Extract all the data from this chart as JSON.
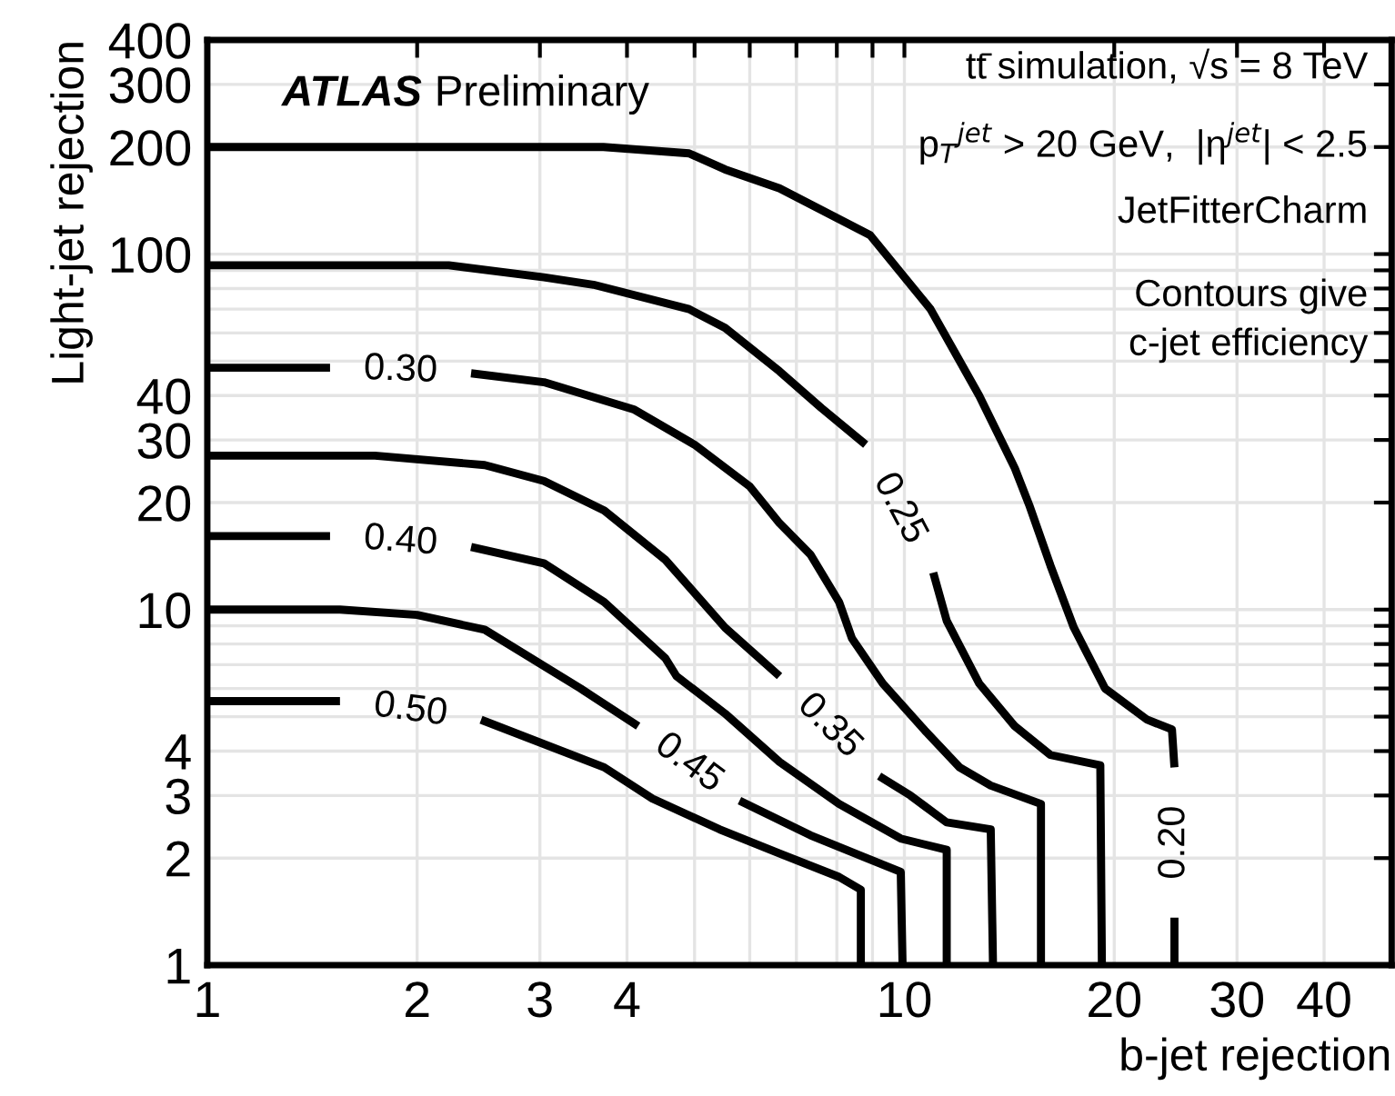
{
  "chart_data": {
    "type": "line",
    "xlabel": "b-jet rejection",
    "ylabel": "Light-jet rejection",
    "annotations": [
      "ATLAS",
      "Preliminary",
      "tt̄ simulation, √s = 8 TeV",
      "p$_{T}$$^{jet}$ > 20 GeV,  |η$^{jet}$| < 2.5",
      "JetFitterCharm",
      "Contours give",
      "c-jet efficiency"
    ],
    "log": "xy",
    "grid": true,
    "line_style": "solid",
    "marker": "none",
    "xlim": [
      1,
      50
    ],
    "ylim": [
      1,
      400
    ],
    "xticks": [
      1,
      2,
      3,
      4,
      {
        "value": 5,
        "label": null
      },
      {
        "value": 6,
        "label": null
      },
      {
        "value": 7,
        "label": null
      },
      {
        "value": 8,
        "label": null
      },
      {
        "value": 9,
        "label": null
      },
      10,
      20,
      30,
      40
    ],
    "yticks": [
      1,
      2,
      3,
      4,
      {
        "value": 5,
        "label": null
      },
      {
        "value": 6,
        "label": null
      },
      {
        "value": 7,
        "label": null
      },
      {
        "value": 8,
        "label": null
      },
      {
        "value": 9,
        "label": null
      },
      10,
      20,
      30,
      40,
      {
        "value": 50,
        "label": null
      },
      {
        "value": 60,
        "label": null
      },
      {
        "value": 70,
        "label": null
      },
      {
        "value": 80,
        "label": null
      },
      {
        "value": 90,
        "label": null
      },
      100,
      200,
      300,
      400
    ],
    "series": [
      {
        "name": "0.20",
        "color": "#000000",
        "x": [
          1,
          3.7,
          4.91,
          5.53,
          6.62,
          8.93,
          10.9,
          12.8,
          14.4,
          15.1,
          16.2,
          17.5,
          19.4,
          22.3,
          24.2,
          24.4,
          null,
          24.4,
          24.4
        ],
        "values": [
          200,
          200,
          192,
          173,
          153,
          113,
          70,
          40,
          25,
          19.7,
          13.3,
          8.9,
          6.0,
          4.9,
          4.6,
          3.6,
          null,
          1.36,
          1
        ]
      },
      {
        "name": "0.25",
        "color": "#000000",
        "x": [
          1,
          2.22,
          3.04,
          3.58,
          4.91,
          5.53,
          6.62,
          7.6,
          8.8,
          null,
          11.0,
          11.5,
          12.8,
          14.4,
          16.2,
          19.1,
          19.2
        ],
        "values": [
          93,
          93,
          86,
          82,
          70,
          62,
          46.8,
          36.9,
          29.1,
          null,
          12.7,
          9.3,
          6.2,
          4.7,
          3.9,
          3.65,
          1
        ]
      },
      {
        "name": "0.30",
        "color": "#000000",
        "x": [
          1,
          1.5,
          null,
          2.39,
          3.04,
          4.1,
          5.0,
          6.0,
          6.62,
          7.33,
          8.06,
          8.41,
          9.31,
          10.7,
          12.0,
          13.3,
          15.7,
          15.7
        ],
        "values": [
          47.9,
          47.9,
          null,
          46.2,
          43.6,
          36.5,
          29.1,
          22.2,
          17.5,
          14.3,
          10.5,
          8.3,
          6.2,
          4.57,
          3.6,
          3.2,
          2.84,
          1
        ]
      },
      {
        "name": "0.35",
        "color": "#000000",
        "x": [
          1,
          1.74,
          2.5,
          3.04,
          3.71,
          4.54,
          5.53,
          6.62,
          null,
          9.2,
          10.2,
          11.5,
          13.3,
          13.4
        ],
        "values": [
          27.1,
          27.1,
          25.5,
          23.0,
          19.0,
          13.8,
          8.9,
          6.5,
          null,
          3.4,
          3.0,
          2.52,
          2.41,
          1
        ]
      },
      {
        "name": "0.40",
        "color": "#000000",
        "x": [
          1,
          1.5,
          null,
          2.39,
          3.04,
          3.71,
          4.54,
          4.71,
          5.53,
          6.62,
          8.06,
          9.88,
          11.5,
          11.5
        ],
        "values": [
          16.1,
          16.1,
          null,
          15.0,
          13.5,
          10.5,
          7.3,
          6.5,
          5.1,
          3.73,
          2.84,
          2.27,
          2.11,
          1
        ]
      },
      {
        "name": "0.45",
        "color": "#000000",
        "x": [
          1,
          1.55,
          2.0,
          2.5,
          3.43,
          4.15,
          null,
          5.8,
          7.33,
          8.77,
          9.88,
          9.94
        ],
        "values": [
          10,
          10,
          9.66,
          8.78,
          6.0,
          4.7,
          null,
          2.9,
          2.32,
          2.01,
          1.83,
          1
        ]
      },
      {
        "name": "0.50",
        "color": "#000000",
        "x": [
          1,
          1.55,
          null,
          2.47,
          3.71,
          4.35,
          5.43,
          6.62,
          8.06,
          8.66,
          8.66
        ],
        "values": [
          5.53,
          5.53,
          null,
          4.9,
          3.6,
          2.94,
          2.41,
          2.06,
          1.77,
          1.63,
          1
        ]
      }
    ]
  }
}
